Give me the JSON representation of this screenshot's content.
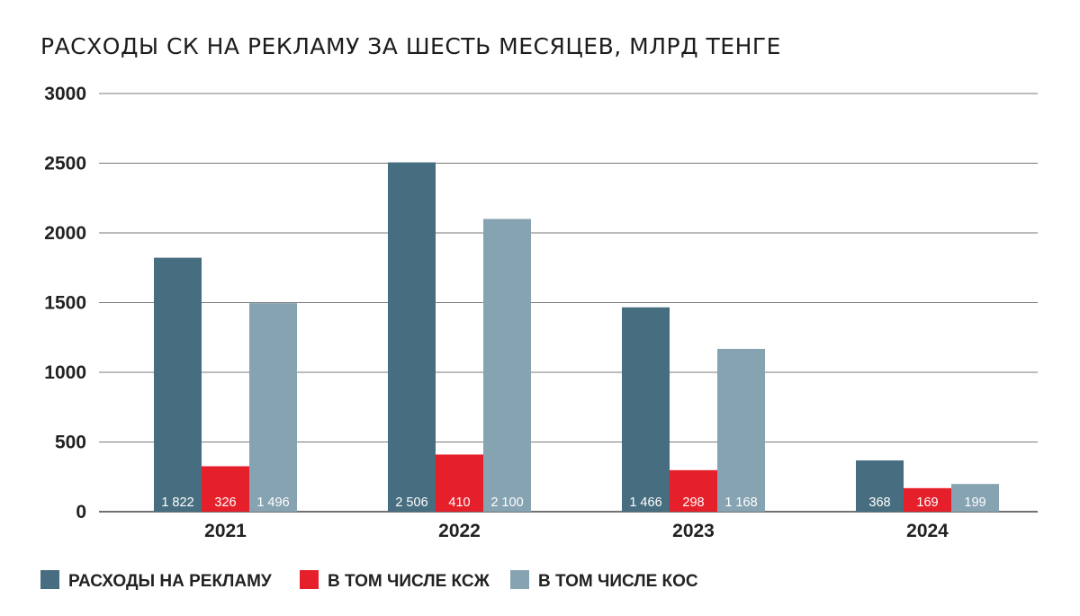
{
  "chart_data": {
    "type": "bar",
    "title": "РАСХОДЫ СК НА РЕКЛАМУ ЗА ШЕСТЬ МЕСЯЦЕВ, МЛРД ТЕНГЕ",
    "xlabel": "",
    "ylabel": "",
    "categories": [
      "2021",
      "2022",
      "2023",
      "2024"
    ],
    "ylim": [
      0,
      3000
    ],
    "yticks": [
      0,
      500,
      1000,
      1500,
      2000,
      2500,
      3000
    ],
    "grid": true,
    "legend_position": "bottom-left",
    "series": [
      {
        "name": "РАСХОДЫ НА РЕКЛАМУ",
        "color": "#476e80",
        "values": [
          1822,
          2506,
          1466,
          368
        ],
        "labels": [
          "1 822",
          "2 506",
          "1 466",
          "368"
        ]
      },
      {
        "name": "В ТОМ ЧИСЛЕ КСЖ",
        "color": "#e5202b",
        "values": [
          326,
          410,
          298,
          169
        ],
        "labels": [
          "326",
          "410",
          "298",
          "169"
        ]
      },
      {
        "name": "В ТОМ ЧИСЛЕ КОС",
        "color": "#86a3b2",
        "values": [
          1496,
          2100,
          1168,
          199
        ],
        "labels": [
          "1 496",
          "2 100",
          "1 168",
          "199"
        ]
      }
    ]
  }
}
